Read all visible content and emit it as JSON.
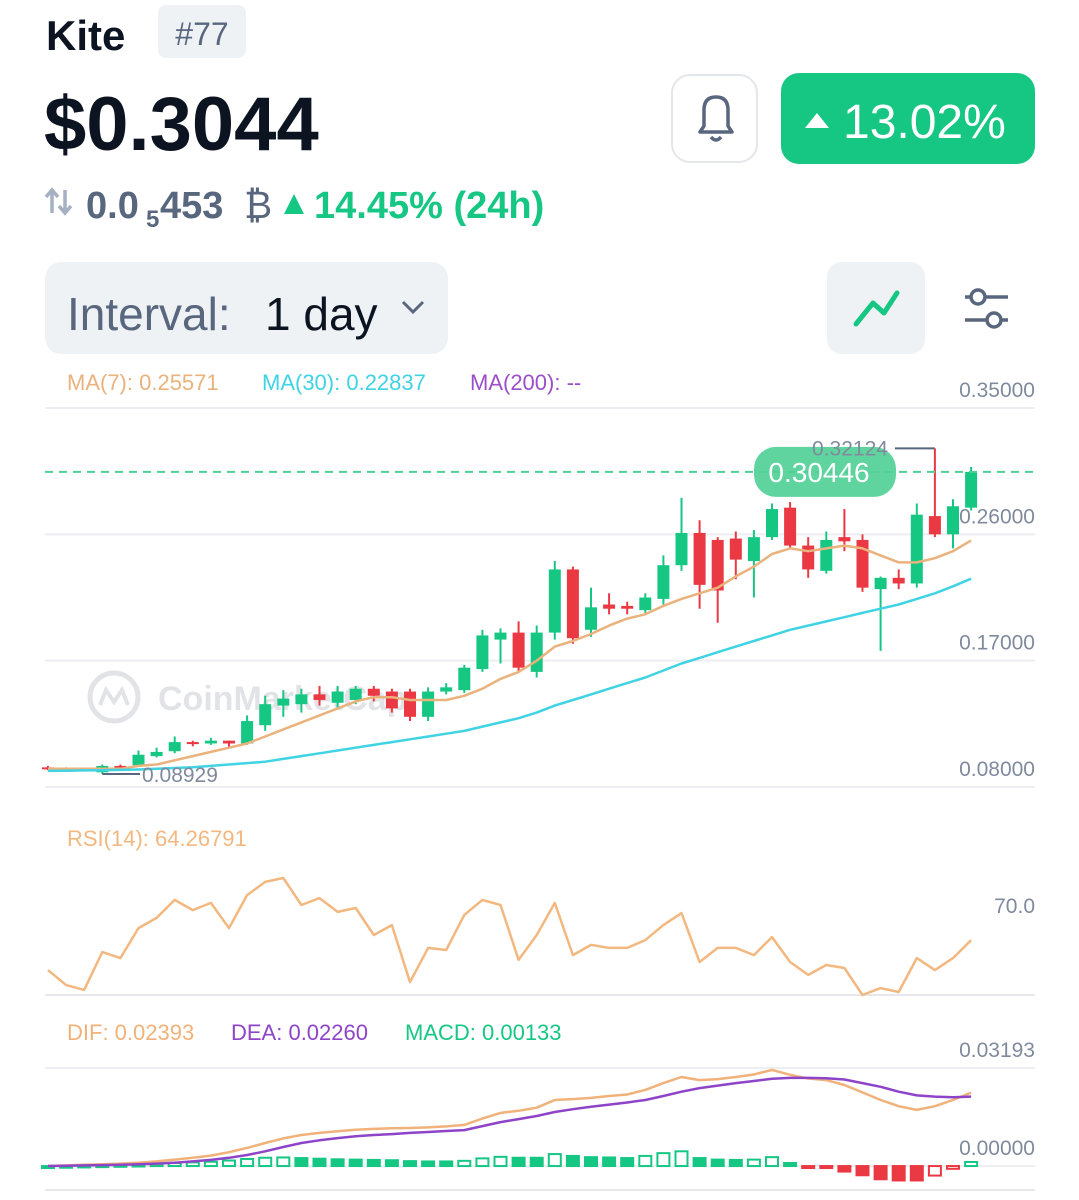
{
  "header": {
    "name": "Kite",
    "rank": "#77",
    "price": "$0.3044",
    "change_badge": "13.02%",
    "btc_price": {
      "lead": "0.0",
      "zeros": "5",
      "digits": "453",
      "unit": "₿"
    },
    "change_24h": "14.45% (24h)"
  },
  "interval": {
    "label": "Interval:",
    "value": "1 day"
  },
  "watermark": "CoinMarketCap",
  "chart_data": [
    {
      "type": "candlestick",
      "ylim": [
        0.08,
        0.35
      ],
      "yticks": [
        {
          "value": 0.35,
          "label": "0.35000"
        },
        {
          "value": 0.26,
          "label": "0.26000"
        },
        {
          "value": 0.17,
          "label": "0.17000"
        },
        {
          "value": 0.08,
          "label": "0.08000"
        }
      ],
      "grid": true,
      "up_color": "#16c784",
      "down_color": "#ea3943",
      "open": [
        0.094,
        0.093,
        0.092,
        0.0905,
        0.095,
        0.0955,
        0.102,
        0.1055,
        0.112,
        0.111,
        0.113,
        0.111,
        0.124,
        0.138,
        0.139,
        0.146,
        0.14,
        0.142,
        0.15,
        0.148,
        0.148,
        0.13,
        0.148,
        0.149,
        0.164,
        0.185,
        0.19,
        0.162,
        0.19,
        0.235,
        0.192,
        0.21,
        0.209,
        0.206,
        0.214,
        0.238,
        0.261,
        0.256,
        0.257,
        0.241,
        0.258,
        0.279,
        0.252,
        0.234,
        0.258,
        0.256,
        0.221,
        0.229,
        0.225,
        0.273,
        0.26,
        0.279
      ],
      "high": [
        0.095,
        0.094,
        0.093,
        0.096,
        0.096,
        0.106,
        0.108,
        0.116,
        0.113,
        0.115,
        0.113,
        0.131,
        0.145,
        0.149,
        0.15,
        0.152,
        0.152,
        0.152,
        0.152,
        0.15,
        0.15,
        0.151,
        0.154,
        0.167,
        0.192,
        0.193,
        0.198,
        0.195,
        0.241,
        0.237,
        0.222,
        0.218,
        0.212,
        0.218,
        0.245,
        0.286,
        0.27,
        0.258,
        0.262,
        0.263,
        0.282,
        0.283,
        0.258,
        0.262,
        0.278,
        0.26,
        0.23,
        0.235,
        0.282,
        0.32124,
        0.285,
        0.308
      ],
      "low": [
        0.092,
        0.092,
        0.091,
        0.08929,
        0.093,
        0.095,
        0.101,
        0.104,
        0.109,
        0.11,
        0.108,
        0.11,
        0.12,
        0.13,
        0.133,
        0.138,
        0.136,
        0.139,
        0.141,
        0.133,
        0.127,
        0.127,
        0.146,
        0.147,
        0.162,
        0.168,
        0.162,
        0.158,
        0.185,
        0.182,
        0.187,
        0.203,
        0.203,
        0.204,
        0.21,
        0.234,
        0.207,
        0.197,
        0.228,
        0.215,
        0.256,
        0.25,
        0.229,
        0.232,
        0.248,
        0.219,
        0.177,
        0.221,
        0.222,
        0.258,
        0.25,
        0.277
      ],
      "close": [
        0.093,
        0.092,
        0.0925,
        0.095,
        0.094,
        0.103,
        0.105,
        0.112,
        0.111,
        0.113,
        0.111,
        0.127,
        0.139,
        0.143,
        0.146,
        0.142,
        0.148,
        0.15,
        0.145,
        0.136,
        0.13,
        0.148,
        0.151,
        0.165,
        0.188,
        0.19,
        0.165,
        0.19,
        0.235,
        0.186,
        0.208,
        0.207,
        0.207,
        0.215,
        0.238,
        0.261,
        0.224,
        0.22,
        0.242,
        0.258,
        0.278,
        0.252,
        0.235,
        0.256,
        0.255,
        0.222,
        0.229,
        0.225,
        0.274,
        0.26,
        0.28,
        0.30446
      ],
      "series": [
        {
          "label": "MA(7): 0.25571",
          "color": "#eab27c",
          "values": [
            0.093,
            0.093,
            0.093,
            0.093,
            0.093,
            0.095,
            0.096,
            0.099,
            0.102,
            0.105,
            0.108,
            0.111,
            0.116,
            0.121,
            0.126,
            0.131,
            0.136,
            0.141,
            0.144,
            0.144,
            0.142,
            0.142,
            0.142,
            0.145,
            0.15,
            0.157,
            0.162,
            0.17,
            0.18,
            0.184,
            0.189,
            0.195,
            0.2,
            0.203,
            0.209,
            0.214,
            0.218,
            0.222,
            0.23,
            0.237,
            0.246,
            0.25,
            0.248,
            0.25,
            0.252,
            0.25,
            0.245,
            0.24,
            0.24,
            0.243,
            0.248,
            0.25571
          ]
        },
        {
          "label": "MA(30): 0.22837",
          "color": "#3fd3e3",
          "values": [
            0.0915,
            0.0916,
            0.0918,
            0.092,
            0.0922,
            0.0925,
            0.093,
            0.0935,
            0.094,
            0.095,
            0.096,
            0.097,
            0.098,
            0.1,
            0.102,
            0.104,
            0.106,
            0.108,
            0.11,
            0.112,
            0.114,
            0.116,
            0.118,
            0.12,
            0.123,
            0.126,
            0.129,
            0.133,
            0.138,
            0.142,
            0.146,
            0.15,
            0.154,
            0.158,
            0.163,
            0.168,
            0.172,
            0.176,
            0.18,
            0.184,
            0.188,
            0.192,
            0.195,
            0.198,
            0.201,
            0.204,
            0.207,
            0.21,
            0.214,
            0.218,
            0.223,
            0.22837
          ]
        },
        {
          "label": "MA(200): --",
          "color": "#9b4fc9"
        }
      ],
      "annotations": {
        "high": 0.32124,
        "low": 0.08929,
        "last": 0.30446,
        "last_color": "#4fcf95"
      }
    },
    {
      "type": "line",
      "title": "RSI(14): 64.26791",
      "color": "#f2b880",
      "ylim": [
        46,
        91
      ],
      "yticks": [
        {
          "value": 70,
          "label": "70.0"
        }
      ],
      "values": [
        54.3,
        49.3,
        47.7,
        60.3,
        58.3,
        68.3,
        71.7,
        77.7,
        74.3,
        76.7,
        68.3,
        79.3,
        83.7,
        85,
        76,
        78.3,
        73.7,
        75,
        66,
        69.3,
        50.3,
        61.7,
        61,
        72.7,
        77.7,
        76,
        57.7,
        66,
        76.7,
        59.3,
        62.7,
        61.7,
        61.7,
        64.3,
        69.3,
        73.3,
        57,
        61.7,
        61.7,
        59.3,
        65.3,
        57,
        52.7,
        56,
        55,
        46,
        48.3,
        47,
        58.3,
        54.3,
        58.3,
        64.26791
      ]
    },
    {
      "type": "macd",
      "ylim": [
        -0.0078,
        0.03193
      ],
      "yticks": [
        {
          "value": 0.03193,
          "label": "0.03193"
        },
        {
          "value": 0,
          "label": "0.00000"
        }
      ],
      "up_color": "#16c784",
      "down_color": "#ea3943",
      "series": [
        {
          "label": "DIF: 0.02393",
          "color": "#f0b27a",
          "values": [
            0,
            0.0002,
            0.0004,
            0.0006,
            0.0008,
            0.0011,
            0.0015,
            0.0021,
            0.0027,
            0.0034,
            0.0045,
            0.0059,
            0.0075,
            0.009,
            0.0101,
            0.0108,
            0.0113,
            0.0118,
            0.0121,
            0.0123,
            0.0124,
            0.0126,
            0.0129,
            0.0134,
            0.0155,
            0.0173,
            0.018,
            0.019,
            0.0215,
            0.0218,
            0.0222,
            0.0228,
            0.0233,
            0.0248,
            0.027,
            0.029,
            0.028,
            0.0283,
            0.029,
            0.0298,
            0.0313,
            0.0297,
            0.0285,
            0.028,
            0.0264,
            0.024,
            0.0215,
            0.0195,
            0.0183,
            0.0195,
            0.0215,
            0.02393
          ]
        },
        {
          "label": "DEA: 0.02260",
          "color": "#8e44c8",
          "values": [
            0,
            0.0001,
            0.0002,
            0.0003,
            0.0004,
            0.0006,
            0.0008,
            0.0011,
            0.0015,
            0.002,
            0.0027,
            0.0036,
            0.0048,
            0.0062,
            0.0075,
            0.0084,
            0.0091,
            0.0097,
            0.0101,
            0.0104,
            0.0108,
            0.0111,
            0.0114,
            0.0117,
            0.013,
            0.0143,
            0.0153,
            0.0163,
            0.0176,
            0.0185,
            0.0193,
            0.02,
            0.0207,
            0.0215,
            0.0228,
            0.0242,
            0.0254,
            0.0262,
            0.027,
            0.0277,
            0.0284,
            0.0287,
            0.0287,
            0.0286,
            0.0282,
            0.027,
            0.0258,
            0.0242,
            0.023,
            0.0226,
            0.0224,
            0.0226
          ]
        }
      ],
      "histogram": {
        "label": "MACD: 0.00133",
        "color": "#16c784",
        "values": [
          0,
          0.0001,
          0.0002,
          0.0003,
          0.0004,
          0.0005,
          0.0007,
          0.001,
          0.0012,
          0.0014,
          0.0018,
          0.0023,
          0.0027,
          0.0028,
          0.0026,
          0.0024,
          0.0022,
          0.0021,
          0.002,
          0.0019,
          0.0016,
          0.0015,
          0.0015,
          0.0017,
          0.0025,
          0.003,
          0.0027,
          0.0027,
          0.0039,
          0.0033,
          0.0029,
          0.0028,
          0.0026,
          0.0033,
          0.0042,
          0.0048,
          0.0026,
          0.0021,
          0.002,
          0.0021,
          0.0029,
          0.001,
          -0.0002,
          -0.0006,
          -0.0018,
          -0.003,
          -0.0043,
          -0.0047,
          -0.0047,
          -0.0031,
          -0.0009,
          0.00133
        ]
      }
    }
  ]
}
